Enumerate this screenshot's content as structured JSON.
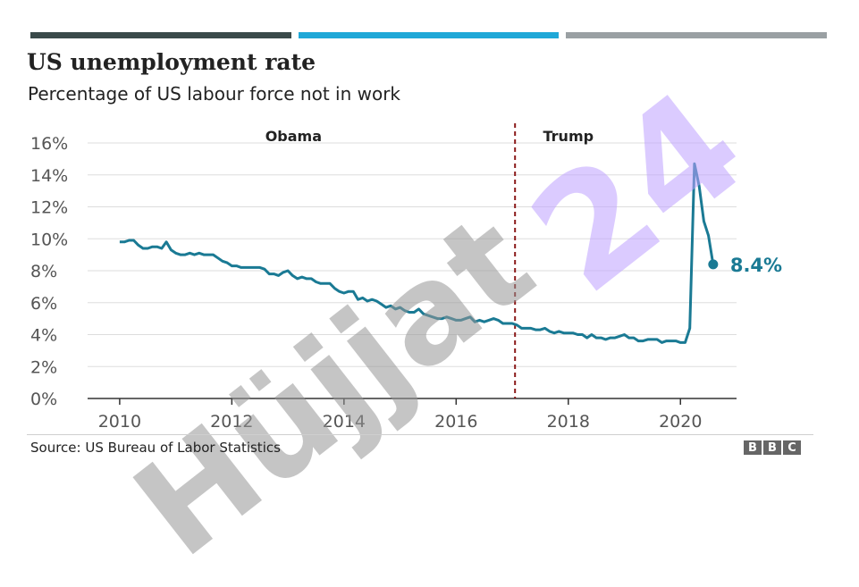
{
  "header": {
    "title": "US unemployment rate",
    "subtitle": "Percentage of US labour force not in work"
  },
  "colors": {
    "stripes": [
      "#3a4a4a",
      "#1fa8d8",
      "#9aa0a3"
    ],
    "line": "#1a7a94",
    "divider": "#8b1a1a",
    "grid": "#dddddd"
  },
  "footer": {
    "source": "Source: US Bureau of Labor Statistics",
    "logo_letters": [
      "B",
      "B",
      "C"
    ]
  },
  "watermark": {
    "gray_text": "Hüjjat",
    "purple_text": "24"
  },
  "chart_data": {
    "type": "line",
    "xlim": [
      2009.97,
      2021.0
    ],
    "ylim": [
      0,
      16
    ],
    "x_ticks": [
      2010,
      2012,
      2014,
      2016,
      2018,
      2020
    ],
    "x_tick_labels": [
      "2010",
      "2012",
      "2014",
      "2016",
      "2018",
      "2020"
    ],
    "y_ticks": [
      0,
      2,
      4,
      6,
      8,
      10,
      12,
      14,
      16
    ],
    "y_tick_labels": [
      "0%",
      "2%",
      "4%",
      "6%",
      "8%",
      "10%",
      "12%",
      "14%",
      "16%"
    ],
    "grid": true,
    "annotations": {
      "divider_x": 2017.05,
      "period_left_label": "Obama",
      "period_left_x": 2013.1,
      "period_right_label": "Trump",
      "period_right_x": 2018.0,
      "end_label": "8.4%"
    },
    "series": [
      {
        "x": [
          2010.0,
          2010.083,
          2010.167,
          2010.25,
          2010.333,
          2010.417,
          2010.5,
          2010.583,
          2010.667,
          2010.75,
          2010.833,
          2010.917,
          2011.0,
          2011.083,
          2011.167,
          2011.25,
          2011.333,
          2011.417,
          2011.5,
          2011.583,
          2011.667,
          2011.75,
          2011.833,
          2011.917,
          2012.0,
          2012.083,
          2012.167,
          2012.25,
          2012.333,
          2012.417,
          2012.5,
          2012.583,
          2012.667,
          2012.75,
          2012.833,
          2012.917,
          2013.0,
          2013.083,
          2013.167,
          2013.25,
          2013.333,
          2013.417,
          2013.5,
          2013.583,
          2013.667,
          2013.75,
          2013.833,
          2013.917,
          2014.0,
          2014.083,
          2014.167,
          2014.25,
          2014.333,
          2014.417,
          2014.5,
          2014.583,
          2014.667,
          2014.75,
          2014.833,
          2014.917,
          2015.0,
          2015.083,
          2015.167,
          2015.25,
          2015.333,
          2015.417,
          2015.5,
          2015.583,
          2015.667,
          2015.75,
          2015.833,
          2015.917,
          2016.0,
          2016.083,
          2016.167,
          2016.25,
          2016.333,
          2016.417,
          2016.5,
          2016.583,
          2016.667,
          2016.75,
          2016.833,
          2016.917,
          2017.0,
          2017.083,
          2017.167,
          2017.25,
          2017.333,
          2017.417,
          2017.5,
          2017.583,
          2017.667,
          2017.75,
          2017.833,
          2017.917,
          2018.0,
          2018.083,
          2018.167,
          2018.25,
          2018.333,
          2018.417,
          2018.5,
          2018.583,
          2018.667,
          2018.75,
          2018.833,
          2018.917,
          2019.0,
          2019.083,
          2019.167,
          2019.25,
          2019.333,
          2019.417,
          2019.5,
          2019.583,
          2019.667,
          2019.75,
          2019.833,
          2019.917,
          2020.0,
          2020.083,
          2020.167,
          2020.25,
          2020.333,
          2020.417,
          2020.5,
          2020.583
        ],
        "values": [
          9.8,
          9.8,
          9.9,
          9.9,
          9.6,
          9.4,
          9.4,
          9.5,
          9.5,
          9.4,
          9.8,
          9.3,
          9.1,
          9.0,
          9.0,
          9.1,
          9.0,
          9.1,
          9.0,
          9.0,
          9.0,
          8.8,
          8.6,
          8.5,
          8.3,
          8.3,
          8.2,
          8.2,
          8.2,
          8.2,
          8.2,
          8.1,
          7.8,
          7.8,
          7.7,
          7.9,
          8.0,
          7.7,
          7.5,
          7.6,
          7.5,
          7.5,
          7.3,
          7.2,
          7.2,
          7.2,
          6.9,
          6.7,
          6.6,
          6.7,
          6.7,
          6.2,
          6.3,
          6.1,
          6.2,
          6.1,
          5.9,
          5.7,
          5.8,
          5.6,
          5.7,
          5.5,
          5.4,
          5.4,
          5.6,
          5.3,
          5.2,
          5.1,
          5.0,
          5.0,
          5.1,
          5.0,
          4.9,
          4.9,
          5.0,
          5.1,
          4.8,
          4.9,
          4.8,
          4.9,
          5.0,
          4.9,
          4.7,
          4.7,
          4.7,
          4.6,
          4.4,
          4.4,
          4.4,
          4.3,
          4.3,
          4.4,
          4.2,
          4.1,
          4.2,
          4.1,
          4.1,
          4.1,
          4.0,
          4.0,
          3.8,
          4.0,
          3.8,
          3.8,
          3.7,
          3.8,
          3.8,
          3.9,
          4.0,
          3.8,
          3.8,
          3.6,
          3.6,
          3.7,
          3.7,
          3.7,
          3.5,
          3.6,
          3.6,
          3.6,
          3.5,
          3.5,
          4.4,
          14.7,
          13.3,
          11.1,
          10.2,
          8.4
        ]
      }
    ]
  }
}
